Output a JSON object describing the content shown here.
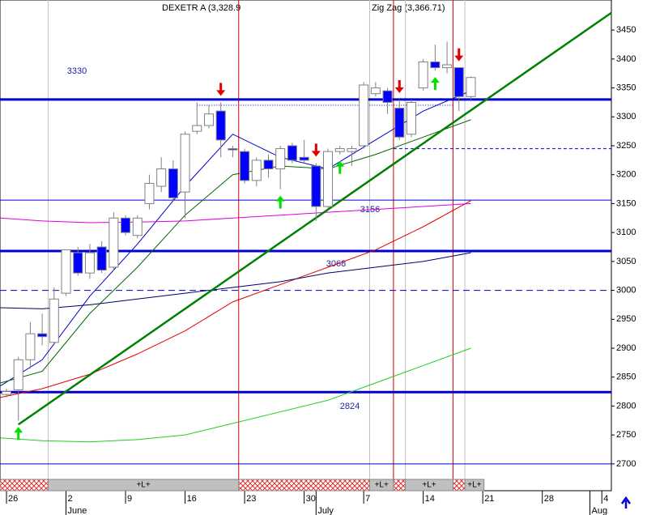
{
  "chart_data": {
    "type": "candlestick",
    "title": "DEXETR A (3,328.9",
    "subtitle": "Zig Zag (3,366.71)",
    "x": [
      0,
      1,
      2,
      3,
      4,
      5,
      6,
      7,
      8,
      9,
      10,
      11,
      12,
      13,
      14,
      15,
      16,
      17,
      18,
      19,
      20,
      21,
      22,
      23,
      24,
      25,
      26,
      27,
      28,
      29,
      30,
      31,
      32,
      33,
      34,
      35,
      36,
      37,
      38,
      39
    ],
    "open": [
      2820,
      2828,
      2880,
      2925,
      2910,
      2995,
      3065,
      3030,
      3075,
      3040,
      3125,
      3095,
      3150,
      3180,
      3210,
      3170,
      3275,
      3285,
      3310,
      3245,
      3240,
      3190,
      3225,
      3210,
      3250,
      3230,
      3215,
      3145,
      3240,
      3240,
      3250,
      3340,
      3345,
      3315,
      3270,
      3350,
      3395,
      3385,
      3385,
      3335
    ],
    "high": [
      2830,
      2885,
      2945,
      2960,
      3005,
      3070,
      3075,
      3080,
      3085,
      3135,
      3130,
      3130,
      3200,
      3230,
      3225,
      3275,
      3325,
      3320,
      3325,
      3250,
      3245,
      3230,
      3235,
      3250,
      3255,
      3260,
      3220,
      3245,
      3250,
      3250,
      3360,
      3360,
      3350,
      3330,
      3330,
      3400,
      3425,
      3430,
      3385,
      3370
    ],
    "low": [
      2815,
      2775,
      2865,
      2905,
      2905,
      2990,
      3025,
      3020,
      3030,
      3035,
      3095,
      3090,
      3140,
      3170,
      3155,
      3125,
      3270,
      3280,
      3230,
      3230,
      3185,
      3180,
      3195,
      3175,
      3220,
      3220,
      3120,
      3140,
      3235,
      3215,
      3245,
      3335,
      3305,
      3260,
      3265,
      3345,
      3380,
      3375,
      3310,
      3330
    ],
    "close": [
      2825,
      2880,
      2925,
      2920,
      2985,
      3070,
      3030,
      3065,
      3035,
      3125,
      3100,
      3125,
      3185,
      3210,
      3160,
      3270,
      3285,
      3305,
      3260,
      3243,
      3190,
      3225,
      3210,
      3245,
      3225,
      3225,
      3145,
      3240,
      3245,
      3245,
      3355,
      3350,
      3325,
      3265,
      3325,
      3395,
      3385,
      3390,
      3335,
      3368
    ],
    "up_color": "#ffffff",
    "down_color": "#0000ff",
    "xlim": [
      -0.544,
      50.8
    ],
    "ylim": [
      2676,
      3502
    ],
    "yticks": [
      2700,
      2750,
      2800,
      2850,
      2900,
      2950,
      3000,
      3050,
      3100,
      3150,
      3200,
      3250,
      3300,
      3350,
      3400,
      3450
    ],
    "xticks": [
      {
        "value": 0,
        "label": "26"
      },
      {
        "value": 5,
        "label": "2"
      },
      {
        "value": 10,
        "label": "9"
      },
      {
        "value": 15,
        "label": "16"
      },
      {
        "value": 20,
        "label": "23"
      },
      {
        "value": 25,
        "label": "30"
      },
      {
        "value": 30,
        "label": "7"
      },
      {
        "value": 35,
        "label": "14"
      },
      {
        "value": 40,
        "label": "21"
      },
      {
        "value": 45,
        "label": "28"
      },
      {
        "value": 50,
        "label": "4"
      }
    ],
    "months": [
      {
        "value": 5,
        "label": "June"
      },
      {
        "value": 26,
        "label": "July"
      },
      {
        "value": 49,
        "label": "Aug"
      }
    ],
    "lines": [
      {
        "color": "#0000cc",
        "x": [
          -0.5,
          3,
          7,
          11,
          15,
          19,
          23,
          27,
          31,
          35,
          39
        ],
        "values": [
          2835,
          2880,
          2990,
          3080,
          3180,
          3270,
          3230,
          3210,
          3260,
          3310,
          3345
        ]
      },
      {
        "color": "#006600",
        "x": [
          -0.5,
          3,
          7,
          11,
          15,
          19,
          23,
          27,
          31,
          35,
          39
        ],
        "values": [
          2840,
          2860,
          2960,
          3040,
          3130,
          3200,
          3215,
          3210,
          3235,
          3265,
          3295
        ]
      },
      {
        "color": "#e00000",
        "x": [
          -0.5,
          3,
          7,
          11,
          15,
          19,
          23,
          27,
          31,
          35,
          39
        ],
        "values": [
          2815,
          2830,
          2855,
          2890,
          2930,
          2980,
          3010,
          3040,
          3070,
          3110,
          3155
        ]
      },
      {
        "color": "#000066",
        "x": [
          -0.5,
          3,
          7,
          11,
          15,
          19,
          23,
          27,
          31,
          35,
          39
        ],
        "values": [
          2970,
          2968,
          2975,
          2985,
          2995,
          3005,
          3015,
          3030,
          3040,
          3050,
          3065
        ]
      },
      {
        "color": "#dd00dd",
        "x": [
          -0.5,
          3,
          7,
          11,
          15,
          19,
          23,
          27,
          31,
          35,
          39
        ],
        "values": [
          3125,
          3120,
          3117,
          3118,
          3120,
          3125,
          3130,
          3135,
          3140,
          3145,
          3150
        ]
      },
      {
        "color": "#22cc22",
        "x": [
          -0.5,
          3,
          7,
          11,
          15,
          19,
          23,
          27,
          31,
          35,
          39
        ],
        "values": [
          2745,
          2740,
          2738,
          2742,
          2750,
          2770,
          2790,
          2810,
          2840,
          2870,
          2900
        ]
      }
    ],
    "trendline": {
      "color": "#008000",
      "x": [
        1,
        50.8
      ],
      "values": [
        2768,
        3480
      ]
    },
    "levels": [
      3330,
      3156,
      3068,
      2824
    ],
    "thick_levels": [
      3330,
      3068,
      2824
    ],
    "dashed_lines": [
      3000
    ],
    "partial_lines": [
      {
        "from": 16,
        "to": 37.5,
        "value": 3320
      },
      {
        "from": 32.5,
        "to": 50.8,
        "value": 3245
      }
    ],
    "baseline": 2700,
    "red_verticals": [
      19.5,
      32.5,
      37.5
    ],
    "gray_verticals": [
      3.5,
      30.5,
      33.5,
      38.5
    ],
    "sell_signals": [
      18,
      26,
      33,
      38
    ],
    "buy_signals": [
      1,
      23,
      28,
      36
    ],
    "long_periods": [
      {
        "from": 3.5,
        "to": 19.5,
        "label": "+L+"
      },
      {
        "from": 30.5,
        "to": 32.5,
        "label": "+L+"
      },
      {
        "from": 33.5,
        "to": 37.5,
        "label": "+L+"
      },
      {
        "from": 38.5,
        "to": 40.1,
        "label": "+L+"
      }
    ],
    "short_periods": [
      [
        -0.544,
        3.5
      ],
      [
        19.5,
        30.5
      ],
      [
        32.5,
        33.5
      ],
      [
        37.5,
        38.5
      ]
    ]
  }
}
